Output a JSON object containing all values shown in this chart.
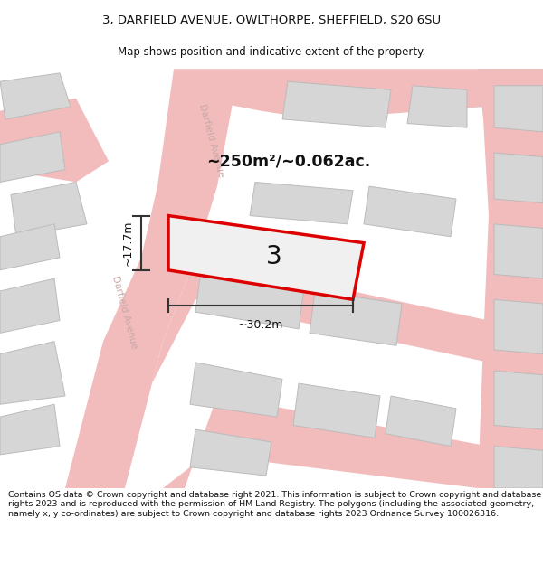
{
  "title_line1": "3, DARFIELD AVENUE, OWLTHORPE, SHEFFIELD, S20 6SU",
  "title_line2": "Map shows position and indicative extent of the property.",
  "footer_text": "Contains OS data © Crown copyright and database right 2021. This information is subject to Crown copyright and database rights 2023 and is reproduced with the permission of HM Land Registry. The polygons (including the associated geometry, namely x, y co-ordinates) are subject to Crown copyright and database rights 2023 Ordnance Survey 100026316.",
  "background_color": "#ffffff",
  "map_bg_color": "#f7f7f7",
  "area_label": "~250m²/~0.062ac.",
  "width_label": "~30.2m",
  "height_label": "~17.7m",
  "plot_number": "3",
  "road_name_upper": "Darfield Avenue",
  "road_name_lower": "Darfield Avenue",
  "red_color": "#dd0000",
  "road_color": "#f2bcbc",
  "building_color": "#d6d6d6",
  "building_edge": "#bbbbbb",
  "dim_color": "#333333",
  "road_label_color": "#c8a8a8",
  "plot_fill": "#f0f0f0"
}
